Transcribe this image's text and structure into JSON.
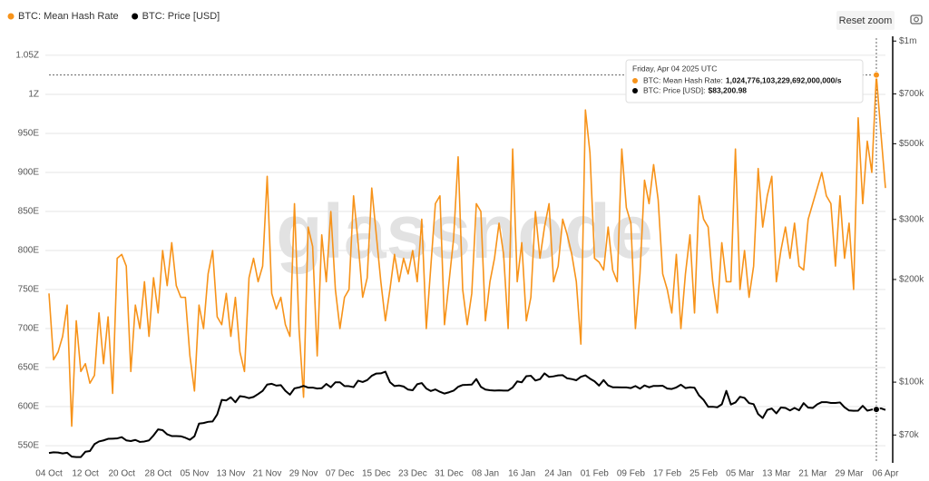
{
  "ui": {
    "reset_zoom": "Reset zoom"
  },
  "chart_data": {
    "type": "line",
    "watermark": "glassnode",
    "grid": true,
    "legend": "top-left",
    "y2scale": "log",
    "ylim": [
      528,
      1072
    ],
    "yticks": [
      {
        "value": 550,
        "label": "550E"
      },
      {
        "value": 600,
        "label": "600E"
      },
      {
        "value": 650,
        "label": "650E"
      },
      {
        "value": 700,
        "label": "700E"
      },
      {
        "value": 750,
        "label": "750E"
      },
      {
        "value": 800,
        "label": "800E"
      },
      {
        "value": 850,
        "label": "850E"
      },
      {
        "value": 900,
        "label": "900E"
      },
      {
        "value": 950,
        "label": "950E"
      },
      {
        "value": 1000,
        "label": "1Z"
      },
      {
        "value": 1050,
        "label": "1.05Z"
      }
    ],
    "y2lim": [
      58000,
      1020000
    ],
    "y2ticks": [
      {
        "value": 70000,
        "label": "$70k"
      },
      {
        "value": 100000,
        "label": "$100k"
      },
      {
        "value": 200000,
        "label": "$200k"
      },
      {
        "value": 300000,
        "label": "$300k"
      },
      {
        "value": 500000,
        "label": "$500k"
      },
      {
        "value": 700000,
        "label": "$700k"
      },
      {
        "value": 1000000,
        "label": "$1m"
      }
    ],
    "categories": [
      "04 Oct",
      null,
      null,
      null,
      null,
      null,
      null,
      null,
      "12 Oct",
      null,
      null,
      null,
      null,
      null,
      null,
      null,
      "20 Oct",
      null,
      null,
      null,
      null,
      null,
      null,
      null,
      "28 Oct",
      null,
      null,
      null,
      null,
      null,
      null,
      null,
      "05 Nov",
      null,
      null,
      null,
      null,
      null,
      null,
      null,
      "13 Nov",
      null,
      null,
      null,
      null,
      null,
      null,
      null,
      "21 Nov",
      null,
      null,
      null,
      null,
      null,
      null,
      null,
      "29 Nov",
      null,
      null,
      null,
      null,
      null,
      null,
      null,
      "07 Dec",
      null,
      null,
      null,
      null,
      null,
      null,
      null,
      "15 Dec",
      null,
      null,
      null,
      null,
      null,
      null,
      null,
      "23 Dec",
      null,
      null,
      null,
      null,
      null,
      null,
      null,
      "31 Dec",
      null,
      null,
      null,
      null,
      null,
      null,
      null,
      "08 Jan",
      null,
      null,
      null,
      null,
      null,
      null,
      null,
      "16 Jan",
      null,
      null,
      null,
      null,
      null,
      null,
      null,
      "24 Jan",
      null,
      null,
      null,
      null,
      null,
      null,
      null,
      "01 Feb",
      null,
      null,
      null,
      null,
      null,
      null,
      null,
      "09 Feb",
      null,
      null,
      null,
      null,
      null,
      null,
      null,
      "17 Feb",
      null,
      null,
      null,
      null,
      null,
      null,
      null,
      "25 Feb",
      null,
      null,
      null,
      null,
      null,
      null,
      null,
      "05 Mar",
      null,
      null,
      null,
      null,
      null,
      null,
      null,
      "13 Mar",
      null,
      null,
      null,
      null,
      null,
      null,
      null,
      "21 Mar",
      null,
      null,
      null,
      null,
      null,
      null,
      null,
      "29 Mar",
      null,
      null,
      null,
      null,
      null,
      null,
      null,
      "06 Apr"
    ],
    "series": [
      {
        "name": "BTC: Mean Hash Rate",
        "color": "#f7931a",
        "values": [
          745,
          660,
          670,
          690,
          730,
          575,
          710,
          645,
          655,
          630,
          640,
          720,
          655,
          715,
          617,
          790,
          795,
          780,
          645,
          730,
          700,
          760,
          690,
          765,
          720,
          800,
          755,
          810,
          755,
          740,
          740,
          665,
          620,
          730,
          700,
          770,
          800,
          715,
          705,
          745,
          690,
          740,
          670,
          645,
          765,
          790,
          760,
          780,
          895,
          745,
          725,
          740,
          705,
          690,
          860,
          700,
          612,
          830,
          805,
          665,
          820,
          760,
          850,
          750,
          700,
          740,
          750,
          870,
          810,
          740,
          765,
          880,
          820,
          760,
          710,
          750,
          795,
          760,
          790,
          770,
          800,
          760,
          840,
          700,
          780,
          860,
          870,
          705,
          760,
          815,
          920,
          750,
          705,
          745,
          860,
          850,
          710,
          760,
          790,
          835,
          795,
          700,
          930,
          760,
          810,
          710,
          740,
          850,
          790,
          830,
          860,
          760,
          780,
          840,
          820,
          795,
          760,
          680,
          980,
          925,
          790,
          785,
          775,
          830,
          775,
          760,
          930,
          855,
          835,
          700,
          770,
          890,
          860,
          910,
          865,
          770,
          750,
          720,
          795,
          700,
          770,
          820,
          720,
          870,
          840,
          830,
          760,
          720,
          810,
          760,
          760,
          930,
          750,
          800,
          740,
          780,
          905,
          830,
          870,
          895,
          760,
          800,
          830,
          790,
          835,
          780,
          775,
          840,
          860,
          880,
          900,
          870,
          860,
          780,
          870,
          790,
          835,
          750,
          970,
          860,
          940,
          900,
          1024.776103229692,
          950,
          880
        ]
      },
      {
        "name": "BTC: Price [USD]",
        "color": "#000000",
        "axis": "y2",
        "values": [
          62000,
          62300,
          62200,
          61800,
          62100,
          60500,
          60300,
          60300,
          62500,
          62800,
          65800,
          67000,
          67500,
          68200,
          68300,
          68400,
          69000,
          67500,
          67200,
          67700,
          66800,
          67000,
          67500,
          69800,
          72700,
          72300,
          70300,
          69500,
          69500,
          69400,
          68700,
          67800,
          69400,
          75600,
          75900,
          76500,
          76700,
          80400,
          88700,
          88400,
          90300,
          87300,
          91000,
          90600,
          89800,
          90500,
          92300,
          94300,
          98400,
          98900,
          97700,
          98000,
          94300,
          91900,
          95900,
          96500,
          97500,
          96400,
          96400,
          95800,
          96000,
          98800,
          96600,
          99900,
          99900,
          97400,
          97300,
          96700,
          101000,
          100100,
          101400,
          104400,
          106000,
          106100,
          107300,
          100000,
          97400,
          97800,
          97100,
          95100,
          94700,
          98600,
          99400,
          95800,
          94200,
          95200,
          93700,
          92600,
          93400,
          94400,
          96900,
          98100,
          98200,
          98400,
          102100,
          96900,
          95100,
          94700,
          94500,
          94600,
          94500,
          94500,
          96500,
          100500,
          99900,
          104100,
          104400,
          101100,
          102000,
          106100,
          103600,
          104000,
          104700,
          104800,
          102600,
          102100,
          101300,
          103700,
          104700,
          102400,
          100600,
          97700,
          101400,
          97800,
          96600,
          96600,
          96500,
          96500,
          96100,
          97400,
          95700,
          97800,
          96600,
          97500,
          97500,
          97600,
          95800,
          95500,
          96500,
          98300,
          96100,
          96600,
          96300,
          91400,
          88700,
          84700,
          84700,
          84400,
          86100,
          94300,
          86000,
          87200,
          90600,
          89900,
          86800,
          86200,
          80600,
          78500,
          82900,
          83700,
          81000,
          84300,
          84000,
          82600,
          84000,
          82700,
          86800,
          84200,
          84000,
          86100,
          87400,
          87400,
          86900,
          86900,
          87200,
          84400,
          82600,
          82400,
          82500,
          85200,
          82500,
          83100,
          83200.98,
          83800,
          82900
        ]
      }
    ],
    "tooltip": {
      "index": 182,
      "date": "Friday, Apr 04 2025 UTC",
      "lines": [
        {
          "label": "BTC: Mean Hash Rate:",
          "value": "1,024,776,103,229,692,000,000/s"
        },
        {
          "label": "BTC: Price [USD]:",
          "value": "$83,200.98"
        }
      ]
    }
  }
}
